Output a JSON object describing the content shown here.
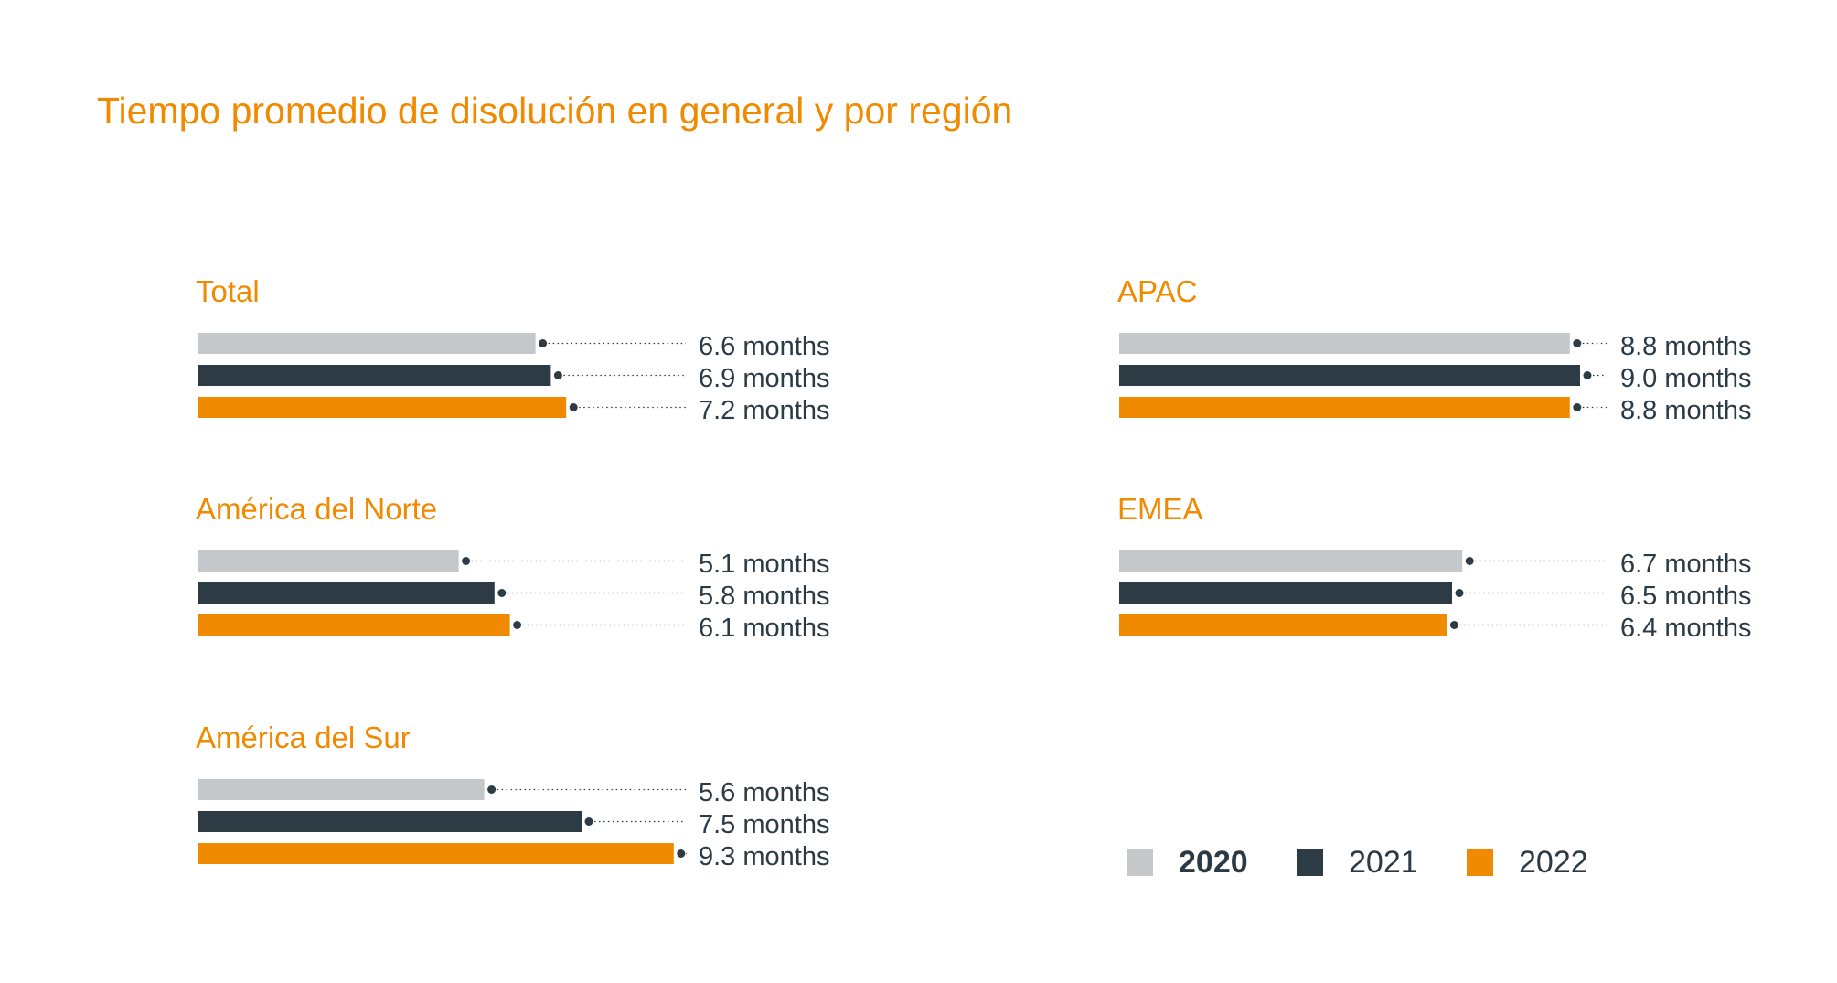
{
  "title": "Tiempo promedio de disolución en general y por región",
  "colors": {
    "2020": "#C5C8CB",
    "2021": "#2D3B45",
    "2022": "#F08A00",
    "accent": "#F08A00"
  },
  "chart_data": {
    "type": "bar",
    "orientation": "horizontal",
    "title": "Tiempo promedio de disolución en general y por región",
    "unit": "months",
    "series_names": [
      "2020",
      "2021",
      "2022"
    ],
    "legend_position": "bottom-right",
    "xlim": [
      0,
      10
    ],
    "grid": false,
    "panels": [
      {
        "name": "Total",
        "values": [
          6.6,
          6.9,
          7.2
        ],
        "labels": [
          "6.6 months",
          "6.9 months",
          "7.2 months"
        ]
      },
      {
        "name": "APAC",
        "values": [
          8.8,
          9.0,
          8.8
        ],
        "labels": [
          "8.8 months",
          "9.0 months",
          "8.8 months"
        ]
      },
      {
        "name": "América del Norte",
        "values": [
          5.1,
          5.8,
          6.1
        ],
        "labels": [
          "5.1 months",
          "5.8 months",
          "6.1 months"
        ]
      },
      {
        "name": "EMEA",
        "values": [
          6.7,
          6.5,
          6.4
        ],
        "labels": [
          "6.7 months",
          "6.5 months",
          "6.4 months"
        ]
      },
      {
        "name": "América del Sur",
        "values": [
          5.6,
          7.5,
          9.3
        ],
        "labels": [
          "5.6 months",
          "7.5 months",
          "9.3 months"
        ]
      }
    ]
  },
  "legend": [
    {
      "label": "2020"
    },
    {
      "label": "2021"
    },
    {
      "label": "2022"
    }
  ]
}
